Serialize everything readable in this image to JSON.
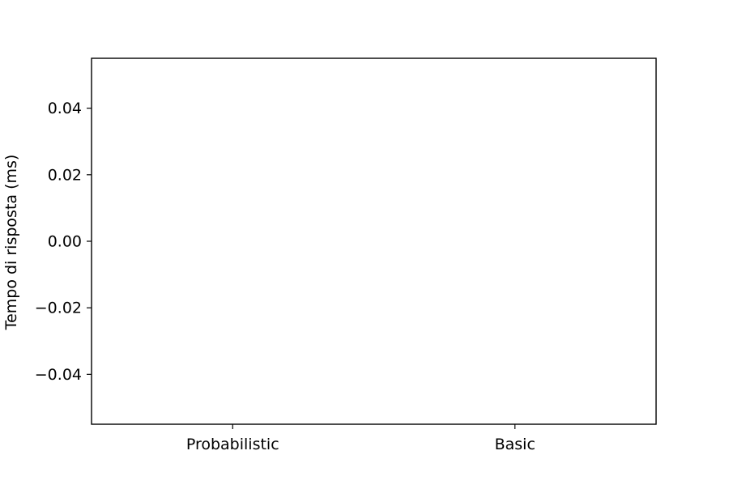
{
  "chart_data": {
    "type": "bar",
    "categories": [
      "Probabilistic",
      "Basic"
    ],
    "series": [],
    "ylabel": "Tempo di risposta (ms)",
    "ylim": [
      -0.055,
      0.055
    ],
    "yticks": [
      -0.04,
      -0.02,
      0.0,
      0.02,
      0.04
    ],
    "ytick_labels": [
      "−0.04",
      "−0.02",
      "0.00",
      "0.02",
      "0.04"
    ],
    "grid": false,
    "legend": "none",
    "colors": {
      "axes": "#000000",
      "background": "#ffffff"
    }
  }
}
